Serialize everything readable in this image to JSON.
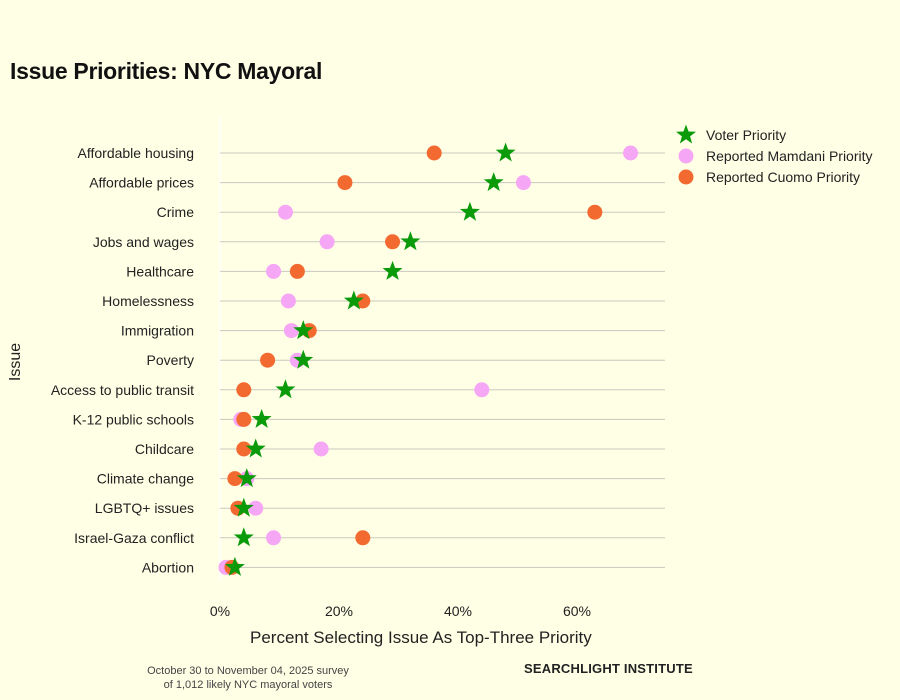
{
  "title": "Issue Priorities: NYC Mayoral",
  "footnote": {
    "line1": "October 30 to November 04, 2025 survey",
    "line2": "of 1,012 likely NYC mayoral voters"
  },
  "brand": "SEARCHLIGHT INSTITUTE",
  "colors": {
    "background": "#FFFFE6",
    "voter": "#0A9A0A",
    "mamdani": "#F5A6F5",
    "cuomo": "#F26A30",
    "grid": "#C8C8C0"
  },
  "chart_data": {
    "type": "scatter",
    "title": "Issue Priorities: NYC Mayoral",
    "xlabel": "Percent Selecting Issue As Top-Three Priority",
    "ylabel": "Issue",
    "xlim": [
      -2,
      75
    ],
    "xticks": [
      0,
      20,
      40,
      60
    ],
    "xtick_labels": [
      "0%",
      "20%",
      "40%",
      "60%"
    ],
    "grid": "horizontal",
    "legend_position": "top-right",
    "categories": [
      "Affordable housing",
      "Affordable prices",
      "Crime",
      "Jobs and wages",
      "Healthcare",
      "Homelessness",
      "Immigration",
      "Poverty",
      "Access to public transit",
      "K-12 public schools",
      "Childcare",
      "Climate change",
      "LGBTQ+ issues",
      "Israel-Gaza conflict",
      "Abortion"
    ],
    "series": [
      {
        "name": "Voter Priority",
        "marker": "star",
        "values": [
          48,
          46,
          42,
          32,
          29,
          22.5,
          14,
          14,
          11,
          7,
          6,
          4.5,
          4,
          4,
          2.5
        ]
      },
      {
        "name": "Reported Mamdani Priority",
        "marker": "circle",
        "values": [
          69,
          51,
          11,
          18,
          9,
          11.5,
          12,
          13,
          44,
          3.5,
          17,
          4.5,
          6,
          9,
          1
        ]
      },
      {
        "name": "Reported Cuomo Priority",
        "marker": "circle",
        "values": [
          36,
          21,
          63,
          29,
          13,
          24,
          15,
          8,
          4,
          4,
          4,
          2.5,
          3,
          24,
          2
        ]
      }
    ]
  }
}
